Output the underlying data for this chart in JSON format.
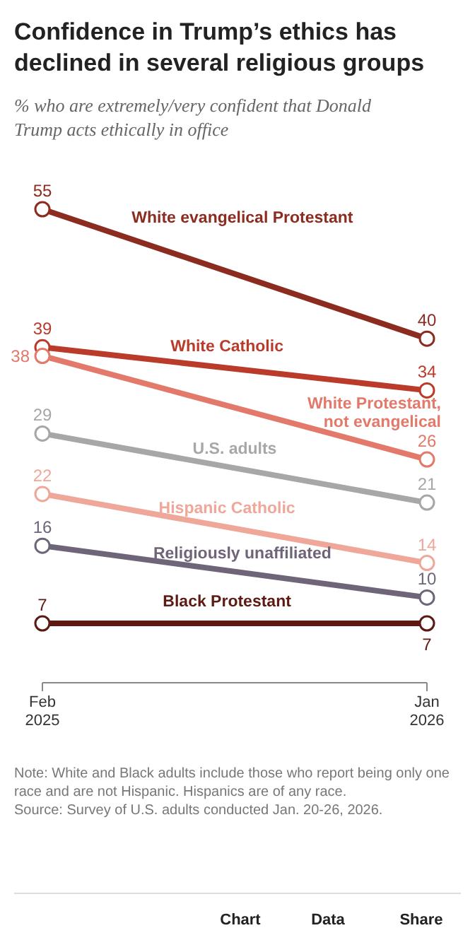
{
  "chart_data": {
    "type": "line",
    "title": "Confidence in Trump’s ethics has declined in several religious groups",
    "subtitle": "% who are extremely/very confident that Donald Trump acts ethically in office",
    "categories": [
      "Feb 2025",
      "Jan 2026"
    ],
    "series": [
      {
        "name": "White evangelical Protestant",
        "color": "#8c2b1f",
        "values": [
          55,
          40
        ]
      },
      {
        "name": "White Catholic",
        "color": "#bb3b2b",
        "values": [
          39,
          34
        ]
      },
      {
        "name": "White Protestant, not evangelical",
        "color": "#e2796a",
        "values": [
          38,
          26
        ]
      },
      {
        "name": "U.S. adults",
        "color": "#a7a7a7",
        "values": [
          29,
          21
        ]
      },
      {
        "name": "Hispanic Catholic",
        "color": "#efa79a",
        "values": [
          22,
          14
        ]
      },
      {
        "name": "Religiously unaffiliated",
        "color": "#6f6578",
        "values": [
          16,
          10
        ]
      },
      {
        "name": "Black Protestant",
        "color": "#5c1a13",
        "values": [
          7,
          7
        ]
      }
    ],
    "data_labels": true,
    "marker": "circle",
    "annotations": [
      "Note: White and Black adults include those who report being only one race and are not Hispanic. Hispanics are of any race.",
      "Source: Survey of U.S. adults conducted Jan. 20-26, 2026.",
      "Chart",
      "Data",
      "Share"
    ]
  }
}
